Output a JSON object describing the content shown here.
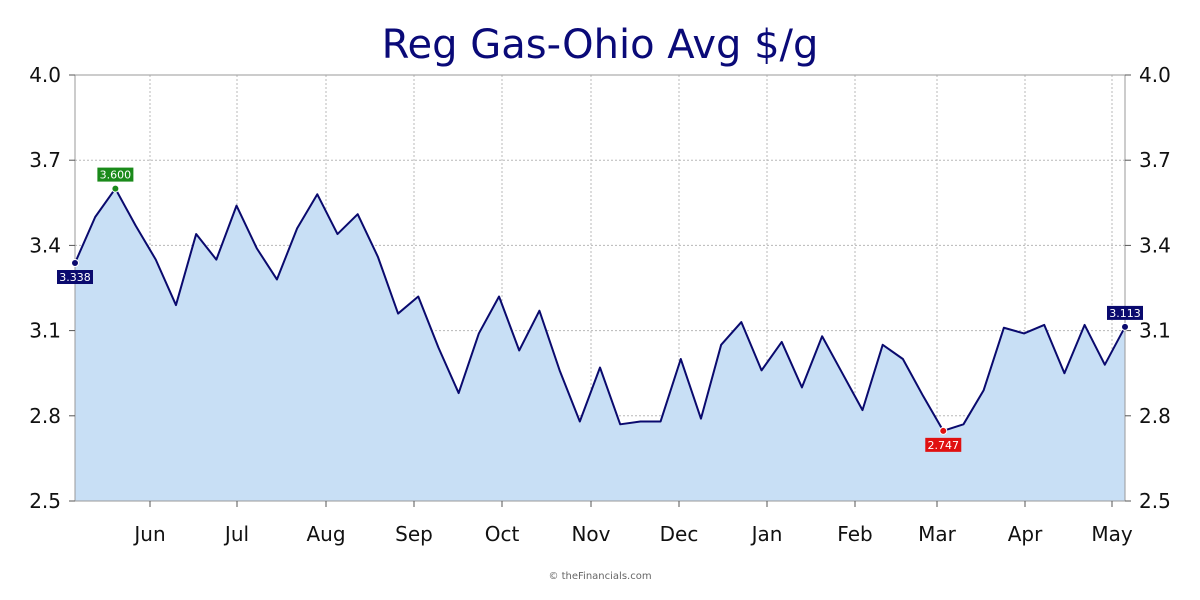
{
  "chart_data": {
    "type": "area",
    "title": "Reg Gas-Ohio Avg $/g",
    "xlabel": "",
    "ylabel": "",
    "credit": "© theFinancials.com",
    "ylim": [
      2.5,
      4.0
    ],
    "y_ticks": [
      "2.5",
      "2.8",
      "3.1",
      "3.4",
      "3.7",
      "4.0"
    ],
    "x_ticks": [
      "Jun",
      "Jul",
      "Aug",
      "Sep",
      "Oct",
      "Nov",
      "Dec",
      "Jan",
      "Feb",
      "Mar",
      "Apr",
      "May"
    ],
    "grid": true,
    "colors": {
      "line": "#0a0a6e",
      "fill": "#c8dff5",
      "title": "#0a0a78",
      "high": "#1a8a1a",
      "low": "#e01010",
      "end": "#0a0a6e"
    },
    "series": [
      {
        "values": [
          3.338,
          3.5,
          3.6,
          3.47,
          3.35,
          3.19,
          3.44,
          3.35,
          3.54,
          3.39,
          3.28,
          3.46,
          3.58,
          3.44,
          3.51,
          3.36,
          3.16,
          3.22,
          3.04,
          2.88,
          3.09,
          3.22,
          3.03,
          3.17,
          2.96,
          2.78,
          2.97,
          2.77,
          2.78,
          2.78,
          3.0,
          2.79,
          3.05,
          3.13,
          2.96,
          3.06,
          2.9,
          3.08,
          2.95,
          2.82,
          3.05,
          3.0,
          2.87,
          2.747,
          2.77,
          2.89,
          3.11,
          3.09,
          3.12,
          2.95,
          3.12,
          2.98,
          3.113
        ]
      }
    ],
    "annotations": {
      "start": "3.338",
      "high": "3.600",
      "low": "2.747",
      "end": "3.113"
    }
  }
}
